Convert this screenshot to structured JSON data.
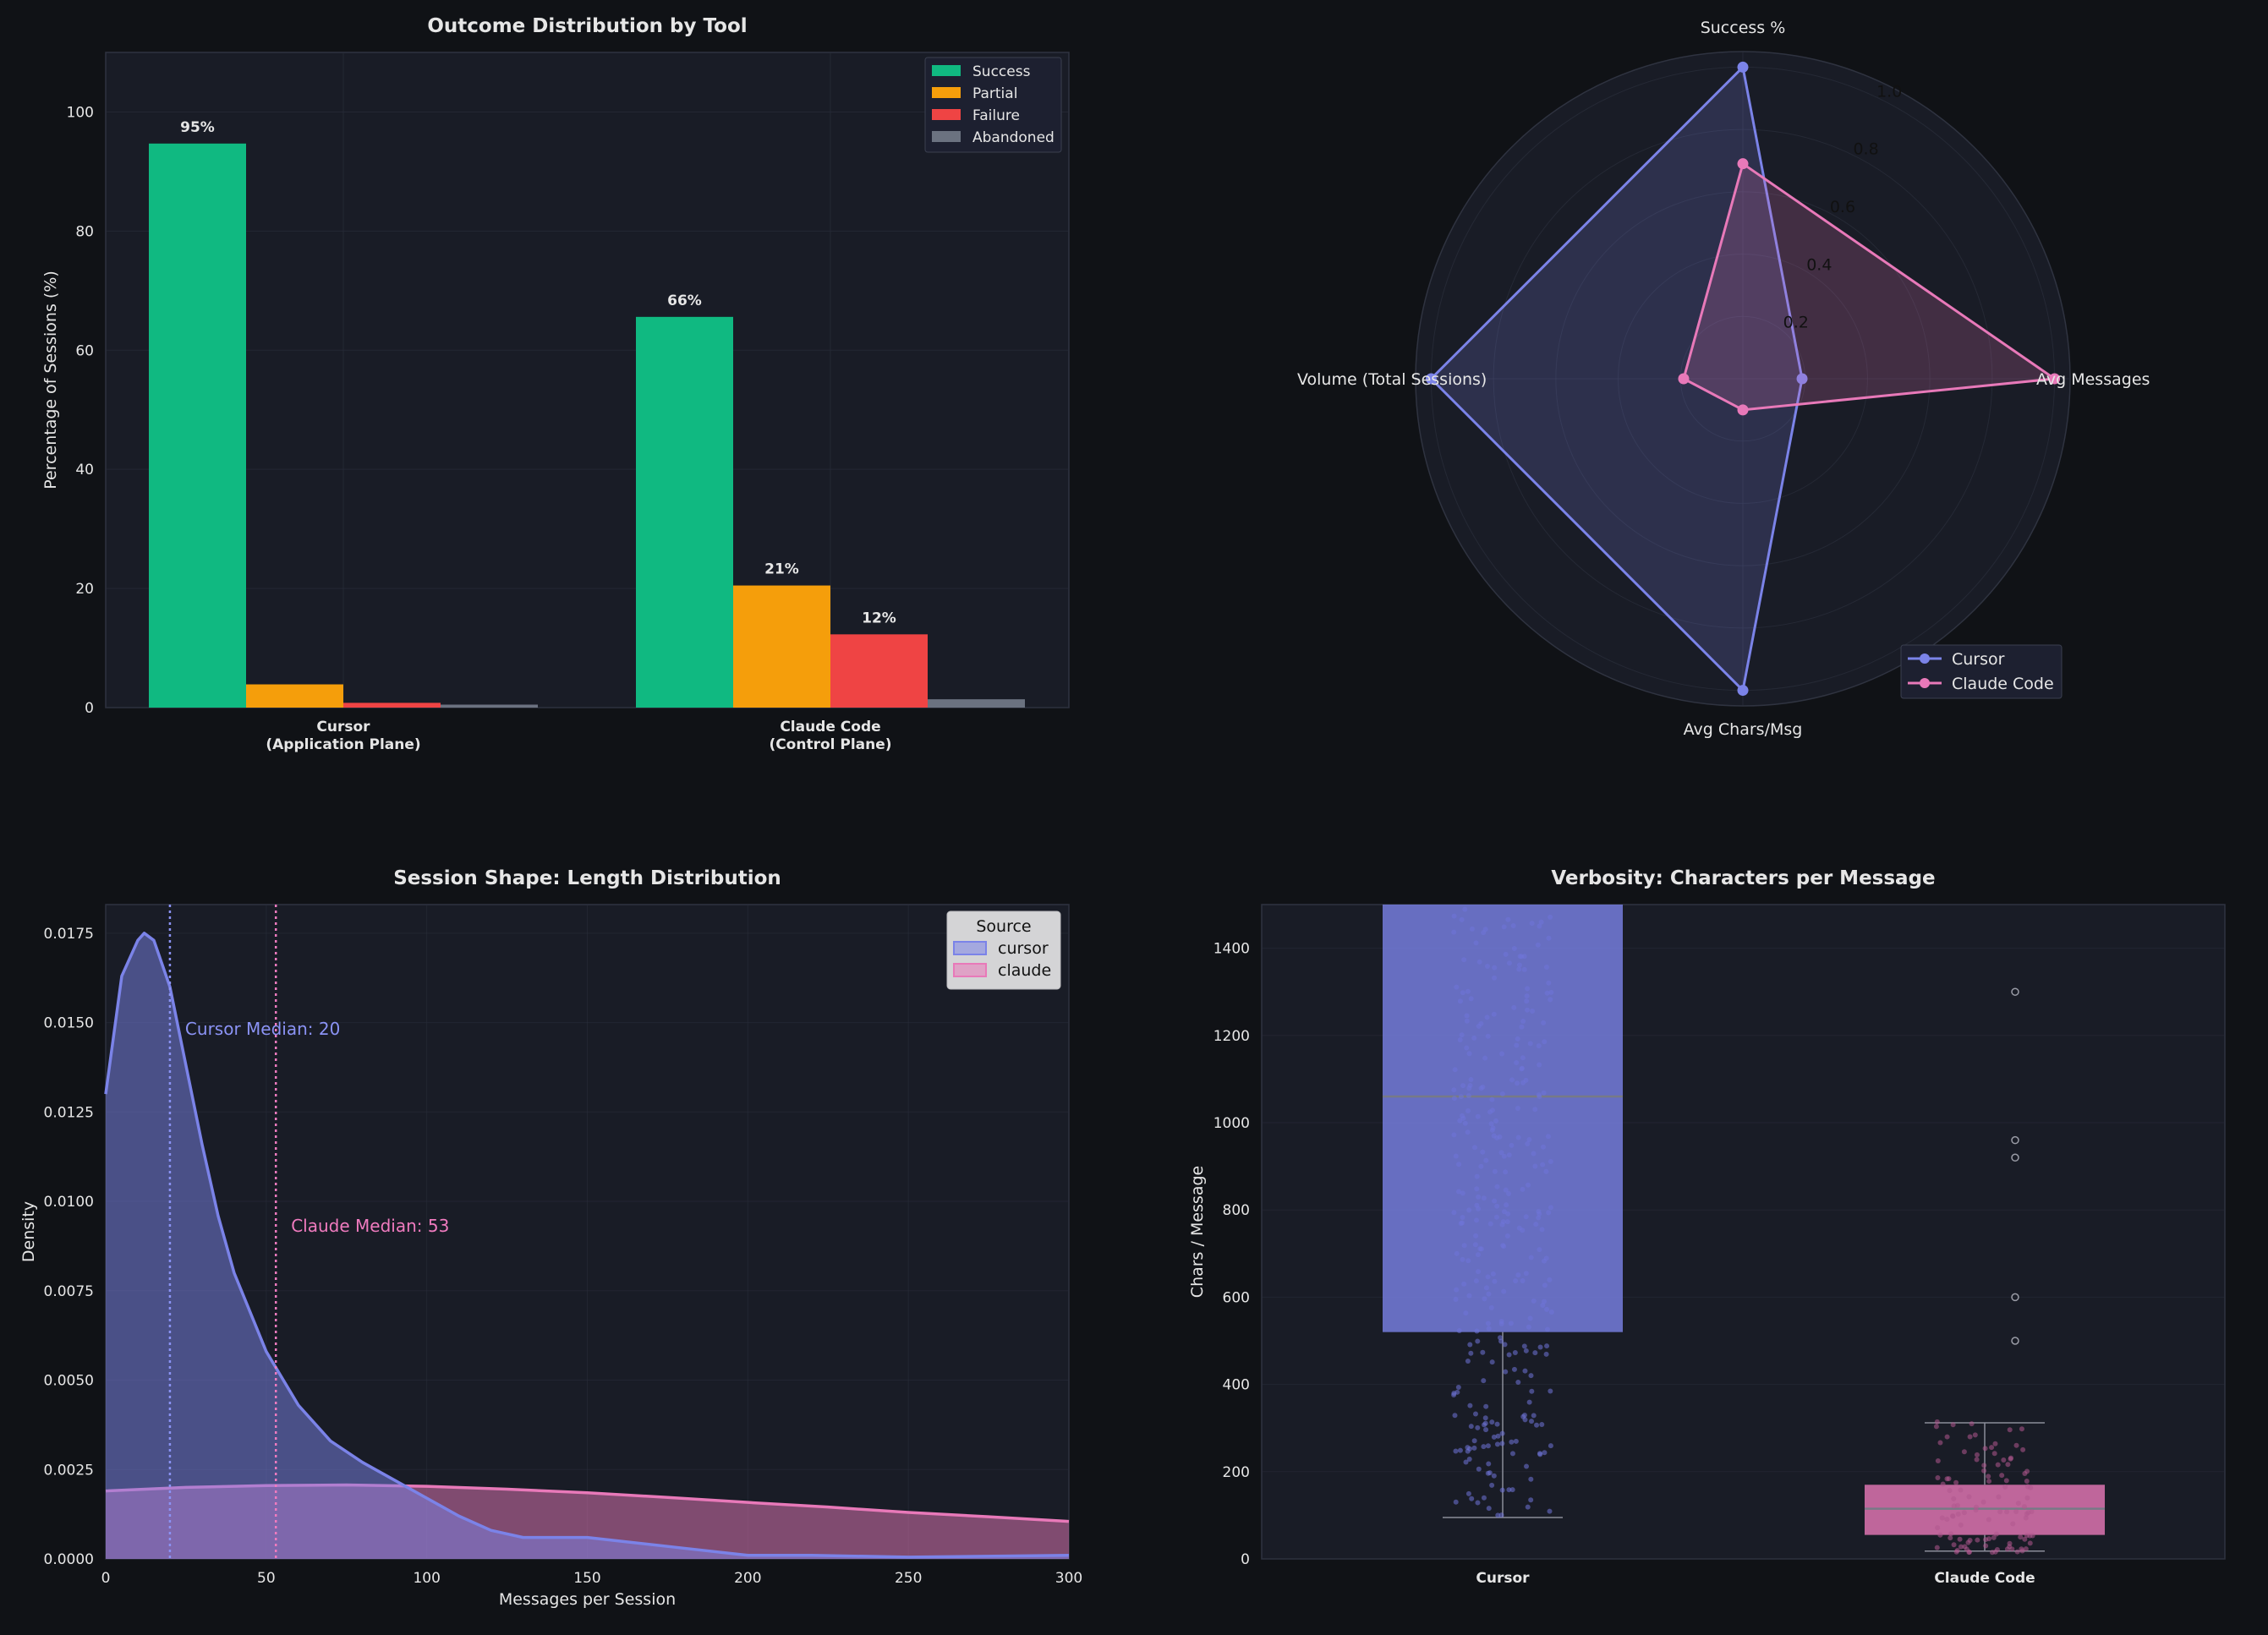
{
  "colors": {
    "background": "#101216",
    "panel": "#191c26",
    "grid": "#2b2f3c",
    "text": "#e6e6e6",
    "success": "#10b981",
    "partial": "#f59e0b",
    "failure": "#ef4444",
    "abandoned": "#6b7280",
    "cursor": "#7b83e8",
    "claude": "#e879b9"
  },
  "chart_data": [
    {
      "id": "outcome",
      "type": "bar",
      "title": "Outcome Distribution by Tool",
      "xlabel": "",
      "ylabel": "Percentage of Sessions (%)",
      "ylim": [
        0,
        110
      ],
      "yticks": [
        0,
        20,
        40,
        60,
        80,
        100
      ],
      "grid": true,
      "legend": "top-right",
      "categories": [
        "Cursor\n(Application Plane)",
        "Claude Code\n(Control Plane)"
      ],
      "series": [
        {
          "name": "Success",
          "values": [
            94.7,
            65.6
          ],
          "labels": [
            "95%",
            "66%"
          ]
        },
        {
          "name": "Partial",
          "values": [
            3.9,
            20.5
          ],
          "labels": [
            "",
            "21%"
          ]
        },
        {
          "name": "Failure",
          "values": [
            0.8,
            12.3
          ],
          "labels": [
            "",
            "12%"
          ]
        },
        {
          "name": "Abandoned",
          "values": [
            0.5,
            1.4
          ],
          "labels": [
            "",
            ""
          ]
        }
      ]
    },
    {
      "id": "radar",
      "type": "radar",
      "axes": [
        "Success %",
        "Avg Messages",
        "Avg Chars/Msg",
        "Volume (Total Sessions)"
      ],
      "rlim": [
        0,
        1.05
      ],
      "rticks": [
        "0.2",
        "0.4",
        "0.6",
        "0.8",
        "1.0"
      ],
      "rtick_values": [
        0.2,
        0.4,
        0.6,
        0.8,
        1.0
      ],
      "legend": "bottom-right",
      "series": [
        {
          "name": "Cursor",
          "values": [
            1.0,
            0.19,
            1.0,
            1.0
          ]
        },
        {
          "name": "Claude Code",
          "values": [
            0.69,
            1.0,
            0.1,
            0.19
          ]
        }
      ]
    },
    {
      "id": "density",
      "type": "area",
      "title": "Session Shape: Length Distribution",
      "xlabel": "Messages per Session",
      "ylabel": "Density",
      "xlim": [
        0,
        300
      ],
      "ylim": [
        0,
        0.0183
      ],
      "xticks": [
        0,
        50,
        100,
        150,
        200,
        250,
        300
      ],
      "yticks": [
        "0.0000",
        "0.0025",
        "0.0050",
        "0.0075",
        "0.0100",
        "0.0125",
        "0.0150",
        "0.0175"
      ],
      "ytick_values": [
        0,
        0.0025,
        0.005,
        0.0075,
        0.01,
        0.0125,
        0.015,
        0.0175
      ],
      "legend_title": "Source",
      "legend": "top-right",
      "grid": true,
      "series": [
        {
          "name": "cursor",
          "x": [
            0,
            5,
            10,
            12,
            15,
            20,
            25,
            30,
            35,
            40,
            50,
            60,
            70,
            80,
            90,
            100,
            110,
            120,
            130,
            140,
            150,
            160,
            180,
            200,
            220,
            250,
            300
          ],
          "y": [
            0.013,
            0.0163,
            0.0173,
            0.0175,
            0.0173,
            0.016,
            0.0138,
            0.0116,
            0.0096,
            0.008,
            0.0058,
            0.0043,
            0.0033,
            0.0027,
            0.0022,
            0.0017,
            0.0012,
            0.0008,
            0.0006,
            0.0006,
            0.0006,
            0.0005,
            0.0003,
            0.0001,
            0.0001,
            5e-05,
            0.0001
          ]
        },
        {
          "name": "claude",
          "x": [
            0,
            25,
            50,
            75,
            100,
            125,
            150,
            175,
            200,
            225,
            250,
            275,
            300
          ],
          "y": [
            0.0019,
            0.002,
            0.00205,
            0.00207,
            0.00203,
            0.00195,
            0.00185,
            0.00172,
            0.00158,
            0.00145,
            0.0013,
            0.00118,
            0.00105
          ]
        }
      ],
      "annotations": [
        {
          "text": "Cursor Median: 20",
          "x": 20,
          "series": "cursor"
        },
        {
          "text": "Claude Median: 53",
          "x": 53,
          "series": "claude"
        }
      ]
    },
    {
      "id": "verbosity",
      "type": "box",
      "title": "Verbosity: Characters per Message",
      "xlabel": "",
      "ylabel": "Chars / Message",
      "ylim": [
        0,
        1500
      ],
      "yticks": [
        0,
        200,
        400,
        600,
        800,
        1000,
        1200,
        1400
      ],
      "grid": true,
      "categories": [
        "Cursor",
        "Claude Code"
      ],
      "boxes": [
        {
          "name": "Cursor",
          "whislo": 95,
          "q1": 520,
          "med": 1060,
          "q3": 1500,
          "whishi": 1500,
          "fliers": []
        },
        {
          "name": "Claude Code",
          "whislo": 18,
          "q1": 55,
          "med": 115,
          "q3": 170,
          "whishi": 312,
          "fliers": [
            1300,
            960,
            920,
            600,
            500
          ]
        }
      ]
    }
  ]
}
